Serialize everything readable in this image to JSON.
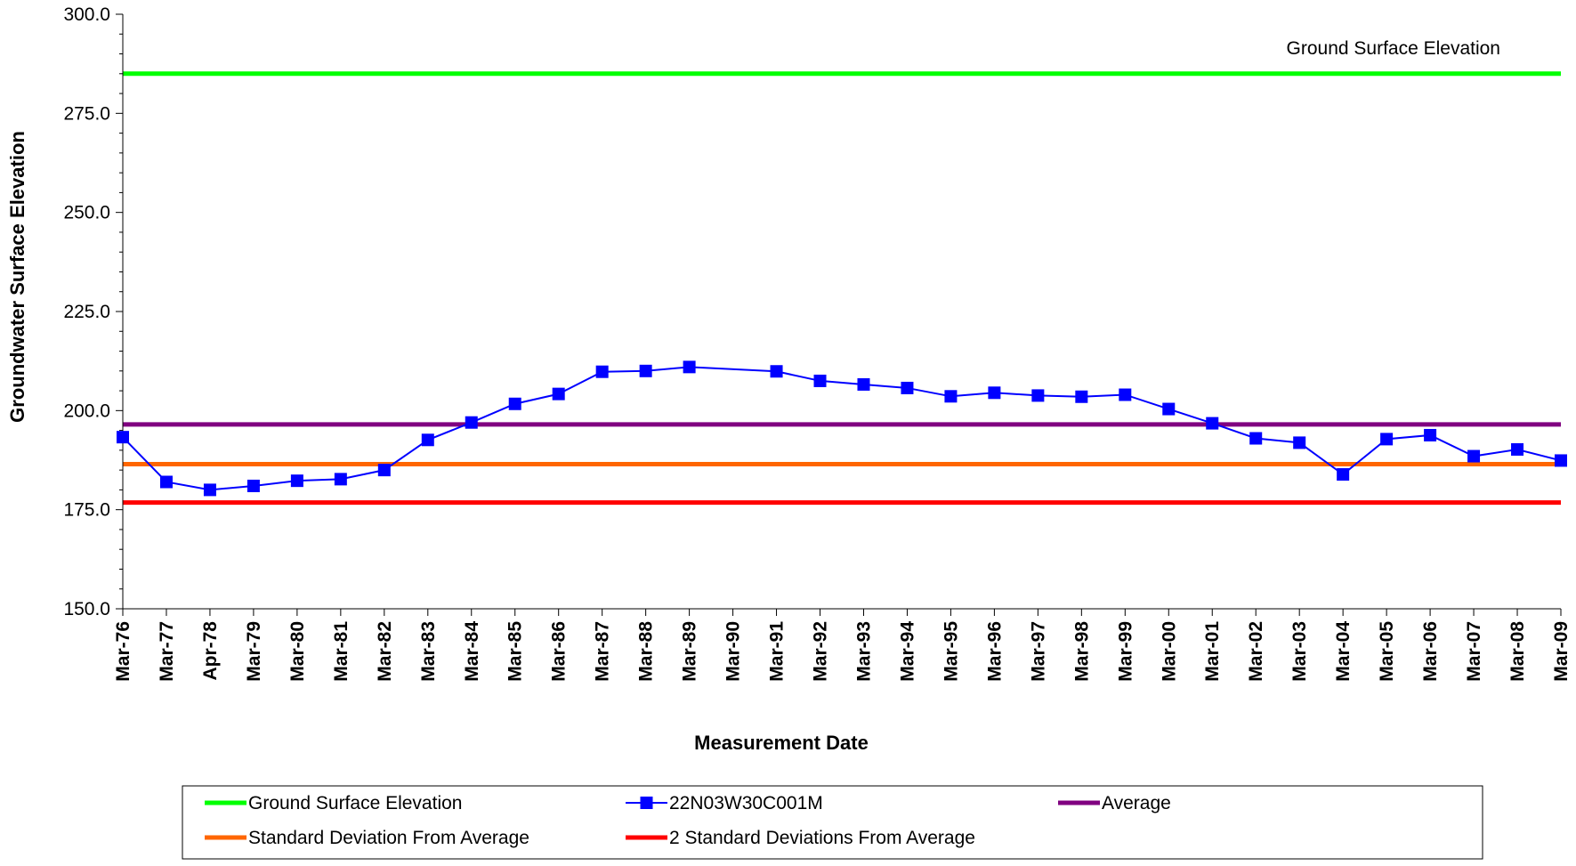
{
  "chart_data": {
    "type": "line",
    "title": "",
    "xlabel": "Measurement Date",
    "ylabel": "Groundwater Surface Elevation",
    "ylim": [
      150,
      300
    ],
    "yticks": [
      "150.0",
      "175.0",
      "200.0",
      "225.0",
      "250.0",
      "275.0",
      "300.0"
    ],
    "categories": [
      "Mar-76",
      "Mar-77",
      "Apr-78",
      "Mar-79",
      "Mar-80",
      "Mar-81",
      "Mar-82",
      "Mar-83",
      "Mar-84",
      "Mar-85",
      "Mar-86",
      "Mar-87",
      "Mar-88",
      "Mar-89",
      "Mar-90",
      "Mar-91",
      "Mar-92",
      "Mar-93",
      "Mar-94",
      "Mar-95",
      "Mar-96",
      "Mar-97",
      "Mar-98",
      "Mar-99",
      "Mar-00",
      "Mar-01",
      "Mar-02",
      "Mar-03",
      "Mar-04",
      "Mar-05",
      "Mar-06",
      "Mar-07",
      "Mar-08",
      "Mar-09"
    ],
    "grid": false,
    "legend_position": "bottom",
    "series": [
      {
        "name": "Ground Surface Elevation",
        "kind": "hline",
        "value": 285,
        "color": "#00ff00"
      },
      {
        "name": "22N03W30C001M",
        "kind": "series",
        "color": "#0000ff",
        "values": [
          193.3,
          182.0,
          180.0,
          181.0,
          182.3,
          182.7,
          185.0,
          192.6,
          197.0,
          201.7,
          204.2,
          209.8,
          210.0,
          211.0,
          null,
          209.9,
          207.5,
          206.6,
          205.7,
          203.6,
          204.5,
          203.8,
          203.5,
          204.0,
          200.4,
          196.8,
          193.0,
          191.9,
          183.9,
          192.8,
          193.8,
          188.5,
          190.2,
          187.4
        ]
      },
      {
        "name": "Average",
        "kind": "hline",
        "value": 196.5,
        "color": "#800080"
      },
      {
        "name": "Standard Deviation From Average",
        "kind": "hline",
        "value": 186.5,
        "color": "#ff6600"
      },
      {
        "name": "2 Standard Deviations From Average",
        "kind": "hline",
        "value": 176.8,
        "color": "#ff0000"
      }
    ],
    "annotations": [
      {
        "text": "Ground Surface Elevation",
        "at": "ground-line",
        "position": "top-right"
      }
    ]
  }
}
